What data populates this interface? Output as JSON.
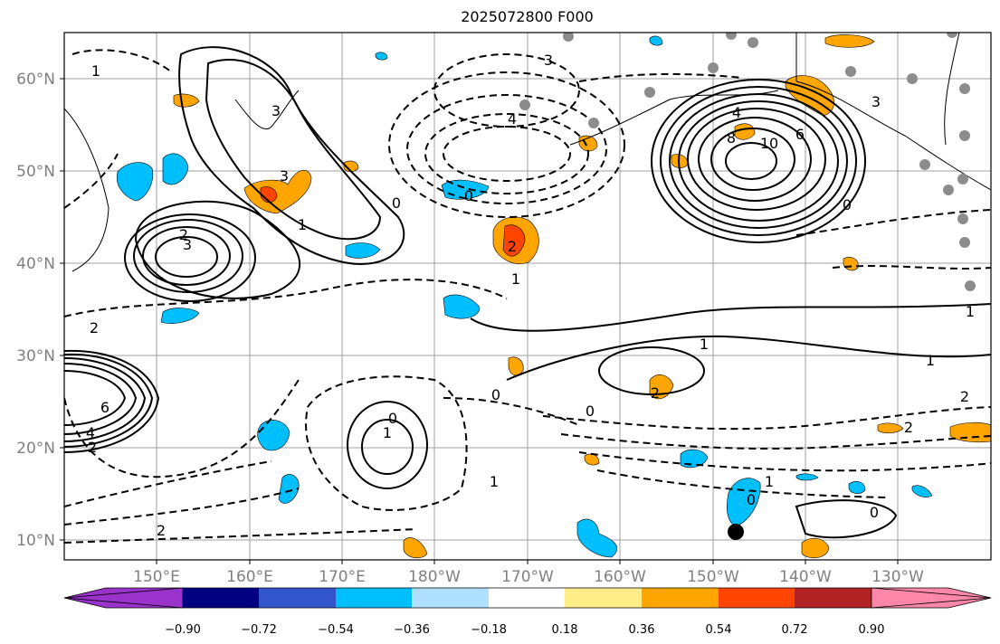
{
  "title": "2025072800 F000",
  "map": {
    "lat_labels": [
      "60°N",
      "50°N",
      "40°N",
      "30°N",
      "20°N",
      "10°N"
    ],
    "lon_labels": [
      "150°E",
      "160°E",
      "170°E",
      "180°W",
      "170°W",
      "160°W",
      "150°W",
      "140°W",
      "130°W"
    ],
    "contour_labels": [
      "1",
      "3",
      "2",
      "3",
      "0",
      "4",
      "3",
      "1",
      "0",
      "2",
      "3",
      "1",
      "2",
      "4",
      "8",
      "10",
      "6",
      "3",
      "0",
      "2",
      "1",
      "1",
      "2",
      "0",
      "0",
      "6",
      "4",
      "2",
      "1",
      "0",
      "1",
      "2",
      "2",
      "1",
      "1",
      "0",
      "0"
    ],
    "colors": {
      "land_outline": "#000000",
      "grid": "#a0a0a0",
      "city_marker": "#8c8c8c",
      "marker": "#000000"
    }
  },
  "colorbar": {
    "ticks": [
      "−0.90",
      "−0.72",
      "−0.54",
      "−0.36",
      "−0.18",
      "0.18",
      "0.36",
      "0.54",
      "0.72",
      "0.90"
    ],
    "colors": [
      "#9933cc",
      "#000080",
      "#3355cc",
      "#00bfff",
      "#b0e0ff",
      "#ffffff",
      "#ffee88",
      "#ffa500",
      "#ff4500",
      "#b22222",
      "#ff88aa"
    ]
  }
}
